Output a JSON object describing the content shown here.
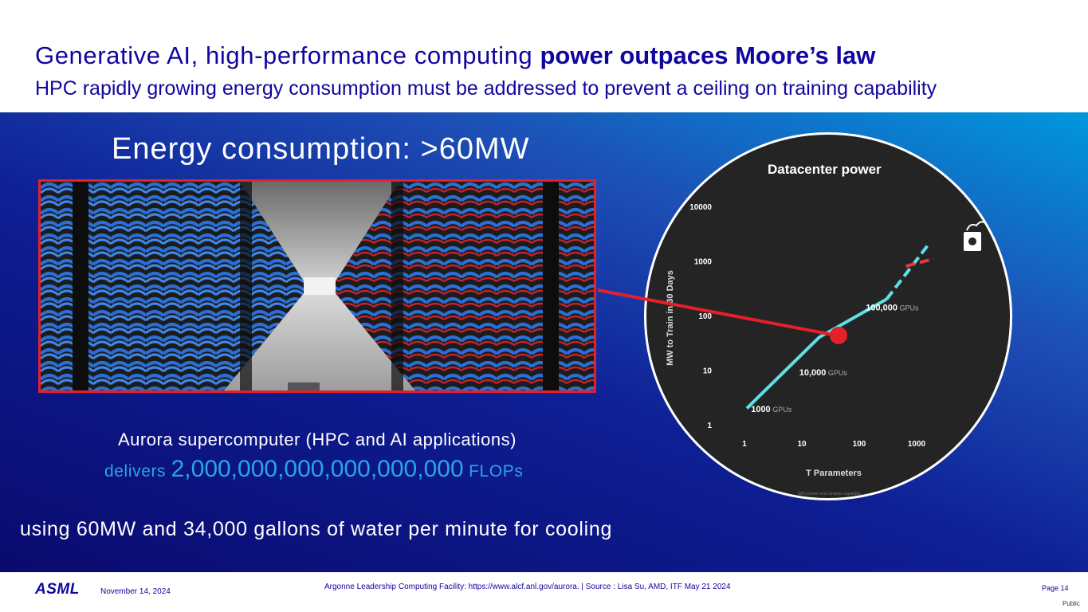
{
  "header": {
    "title_regular": "Generative AI, high-performance computing ",
    "title_bold": "power outpaces Moore’s law",
    "subtitle": "HPC rapidly growing energy consumption must be addressed to prevent a ceiling on training capability"
  },
  "panel": {
    "energy_heading": "Energy consumption: >60MW",
    "aurora_line": "Aurora supercomputer (HPC and AI applications)",
    "delivers_prefix": "delivers ",
    "delivers_value": "2,000,000,000,000,000,000",
    "delivers_suffix": " FLOPs",
    "using_line": "using 60MW and 34,000 gallons of water per minute for cooling"
  },
  "chart": {
    "title": "Datacenter power",
    "ylabel": "MW to Train in 30 Days",
    "xlabel": "T Parameters",
    "yticks": [
      "10000",
      "1000",
      "100",
      "10",
      "1"
    ],
    "xticks": [
      "1",
      "10",
      "100",
      "1000"
    ],
    "labels": [
      {
        "bold": "1000",
        "light": " GPUs"
      },
      {
        "bold": "10,000",
        "light": " GPUs"
      },
      {
        "bold": "100,000",
        "light": " GPUs"
      }
    ],
    "footnote": "GPU power and compute capability..."
  },
  "chart_data": {
    "type": "line",
    "title": "Datacenter power",
    "xlabel": "T Parameters",
    "ylabel": "MW to Train in 30 Days",
    "x_scale": "log",
    "y_scale": "log",
    "xlim": [
      0.5,
      2000
    ],
    "ylim": [
      1,
      10000
    ],
    "series": [
      {
        "x": [
          1.1,
          20,
          300
        ],
        "y": [
          2,
          40,
          200
        ],
        "style": "solid",
        "color": "#5ee0ea"
      },
      {
        "x": [
          300,
          1600
        ],
        "y": [
          200,
          2000
        ],
        "style": "dashed",
        "color": "#5ee0ea"
      },
      {
        "x": [
          650,
          2000
        ],
        "y": [
          800,
          1100
        ],
        "style": "dashed",
        "color": "#e0393e"
      }
    ],
    "highlight_point": {
      "x": 20,
      "y": 40,
      "color": "#e4202b"
    },
    "grid": false
  },
  "footer": {
    "logo": "ASML",
    "date": "November 14, 2024",
    "source": "Argonne Leadership Computing Facility: https://www.alcf.anl.gov/aurora. |  Source : Lisa Su, AMD, ITF May 21 2024",
    "page": "Page 14",
    "classification": "Public"
  },
  "colors": {
    "brand_blue": "#10069f",
    "accent_cyan": "#2aa5e6",
    "highlight_red": "#e4202b"
  }
}
